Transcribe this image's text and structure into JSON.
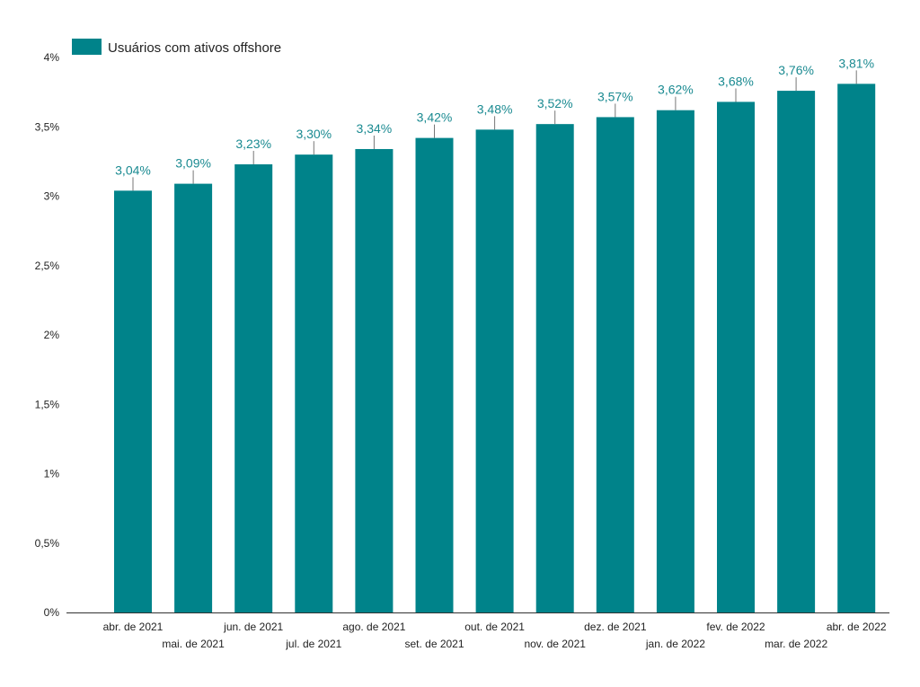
{
  "chart_data": {
    "type": "bar",
    "title": "",
    "xlabel": "",
    "ylabel": "",
    "legend_position": "top-left",
    "grid": false,
    "ylim": [
      0,
      4
    ],
    "y_ticks": [
      {
        "value": 0,
        "label": "0%"
      },
      {
        "value": 0.5,
        "label": "0,5%"
      },
      {
        "value": 1,
        "label": "1%"
      },
      {
        "value": 1.5,
        "label": "1,5%"
      },
      {
        "value": 2,
        "label": "2%"
      },
      {
        "value": 2.5,
        "label": "2,5%"
      },
      {
        "value": 3,
        "label": "3%"
      },
      {
        "value": 3.5,
        "label": "3,5%"
      },
      {
        "value": 4,
        "label": "4%"
      }
    ],
    "categories": [
      "abr. de 2021",
      "mai. de 2021",
      "jun. de 2021",
      "jul. de 2021",
      "ago. de 2021",
      "set. de 2021",
      "out. de 2021",
      "nov. de 2021",
      "dez. de 2021",
      "jan. de 2022",
      "fev. de 2022",
      "mar. de 2022",
      "abr. de 2022"
    ],
    "series": [
      {
        "name": "Usuários com ativos offshore",
        "color": "#00838a",
        "values": [
          3.04,
          3.09,
          3.23,
          3.3,
          3.34,
          3.42,
          3.48,
          3.52,
          3.57,
          3.62,
          3.68,
          3.76,
          3.81
        ],
        "labels": [
          "3,04%",
          "3,09%",
          "3,23%",
          "3,30%",
          "3,34%",
          "3,42%",
          "3,48%",
          "3,52%",
          "3,57%",
          "3,62%",
          "3,68%",
          "3,76%",
          "3,81%"
        ]
      }
    ],
    "label_color": "#1a8a91",
    "axis_color": "#333333"
  }
}
